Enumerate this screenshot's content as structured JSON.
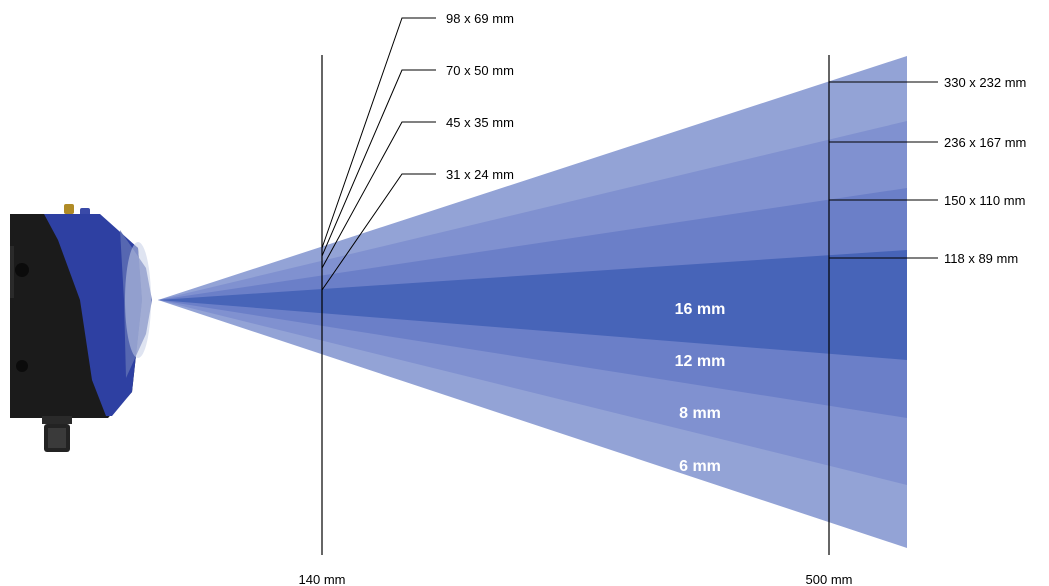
{
  "diagram": {
    "fov_near": [
      {
        "lens": "6 mm",
        "size": "98 x 69 mm"
      },
      {
        "lens": "8 mm",
        "size": "70 x 50 mm"
      },
      {
        "lens": "12 mm",
        "size": "45 x 35 mm"
      },
      {
        "lens": "16 mm",
        "size": "31 x 24 mm"
      }
    ],
    "fov_far": [
      {
        "lens": "6 mm",
        "size": "330 x 232 mm"
      },
      {
        "lens": "8 mm",
        "size": "236 x 167 mm"
      },
      {
        "lens": "12 mm",
        "size": "150 x 110 mm"
      },
      {
        "lens": "16 mm",
        "size": "118 x 89 mm"
      }
    ],
    "lens_labels": [
      "16 mm",
      "12 mm",
      "8 mm",
      "6 mm"
    ],
    "distances": {
      "near": "140 mm",
      "far": "500 mm"
    },
    "colors": {
      "beam_outer": "#93a3d6",
      "beam_mid1": "#8091d0",
      "beam_mid2": "#6b7fc8",
      "beam_inner": "#4764b8",
      "camera_blue": "#2c3f9e",
      "camera_black": "#161616"
    },
    "device_icon": "vision-sensor-camera-icon"
  }
}
